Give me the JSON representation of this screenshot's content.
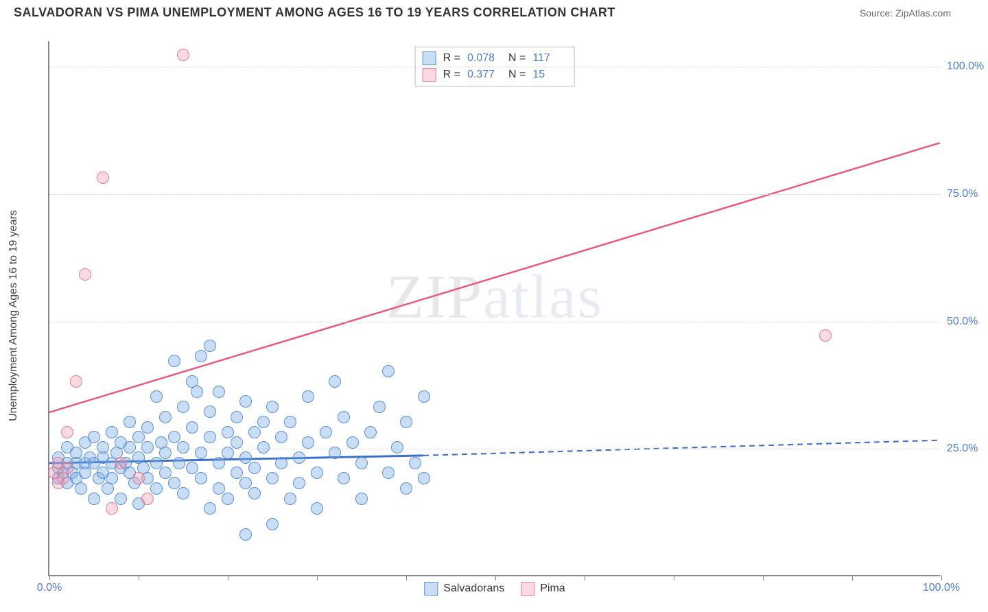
{
  "title": "SALVADORAN VS PIMA UNEMPLOYMENT AMONG AGES 16 TO 19 YEARS CORRELATION CHART",
  "source_label": "Source: ZipAtlas.com",
  "watermark": {
    "part1": "ZIP",
    "part2": "atlas"
  },
  "y_axis_label": "Unemployment Among Ages 16 to 19 years",
  "chart": {
    "type": "scatter",
    "xlim": [
      0,
      100
    ],
    "ylim": [
      0,
      105
    ],
    "background_color": "#ffffff",
    "grid_color": "#dddddd",
    "axis_color": "#888888",
    "tick_color": "#4a7bd0",
    "tick_fontsize": 16,
    "y_ticks": [
      25,
      50,
      75,
      100
    ],
    "y_tick_labels": [
      "25.0%",
      "50.0%",
      "75.0%",
      "100.0%"
    ],
    "x_ticks": [
      0,
      10,
      20,
      30,
      40,
      50,
      60,
      70,
      80,
      90,
      100
    ],
    "x_tick_labels_shown": {
      "0": "0.0%",
      "100": "100.0%"
    },
    "marker_size": 18,
    "series": [
      {
        "id": "salvadorans",
        "label": "Salvadorans",
        "color_fill": "rgba(120,170,230,0.4)",
        "color_border": "#5a8fd0",
        "R": "0.078",
        "N": "117",
        "trend": {
          "x1": 0,
          "y1": 22,
          "x2_solid": 42,
          "y2_solid": 23.5,
          "x2_dash": 100,
          "y2_dash": 26.5,
          "color": "#3b6fc9",
          "width": 3
        },
        "points": [
          [
            1,
            21
          ],
          [
            1,
            19
          ],
          [
            1,
            23
          ],
          [
            1.5,
            20
          ],
          [
            2,
            22
          ],
          [
            2,
            18
          ],
          [
            2,
            25
          ],
          [
            2.5,
            20
          ],
          [
            3,
            22
          ],
          [
            3,
            19
          ],
          [
            3,
            24
          ],
          [
            3.5,
            17
          ],
          [
            4,
            22
          ],
          [
            4,
            26
          ],
          [
            4,
            20
          ],
          [
            4.5,
            23
          ],
          [
            5,
            15
          ],
          [
            5,
            22
          ],
          [
            5,
            27
          ],
          [
            5.5,
            19
          ],
          [
            6,
            23
          ],
          [
            6,
            20
          ],
          [
            6,
            25
          ],
          [
            6.5,
            17
          ],
          [
            7,
            22
          ],
          [
            7,
            28
          ],
          [
            7,
            19
          ],
          [
            7.5,
            24
          ],
          [
            8,
            21
          ],
          [
            8,
            15
          ],
          [
            8,
            26
          ],
          [
            8.5,
            22
          ],
          [
            9,
            30
          ],
          [
            9,
            20
          ],
          [
            9,
            25
          ],
          [
            9.5,
            18
          ],
          [
            10,
            23
          ],
          [
            10,
            27
          ],
          [
            10,
            14
          ],
          [
            10.5,
            21
          ],
          [
            11,
            25
          ],
          [
            11,
            19
          ],
          [
            11,
            29
          ],
          [
            12,
            22
          ],
          [
            12,
            35
          ],
          [
            12,
            17
          ],
          [
            12.5,
            26
          ],
          [
            13,
            20
          ],
          [
            13,
            31
          ],
          [
            13,
            24
          ],
          [
            14,
            42
          ],
          [
            14,
            18
          ],
          [
            14,
            27
          ],
          [
            14.5,
            22
          ],
          [
            15,
            33
          ],
          [
            15,
            16
          ],
          [
            15,
            25
          ],
          [
            16,
            38
          ],
          [
            16,
            21
          ],
          [
            16,
            29
          ],
          [
            16.5,
            36
          ],
          [
            17,
            24
          ],
          [
            17,
            19
          ],
          [
            17,
            43
          ],
          [
            18,
            27
          ],
          [
            18,
            13
          ],
          [
            18,
            32
          ],
          [
            19,
            22
          ],
          [
            19,
            36
          ],
          [
            19,
            17
          ],
          [
            20,
            28
          ],
          [
            20,
            24
          ],
          [
            20,
            15
          ],
          [
            21,
            31
          ],
          [
            21,
            20
          ],
          [
            21,
            26
          ],
          [
            22,
            18
          ],
          [
            22,
            34
          ],
          [
            22,
            23
          ],
          [
            23,
            28
          ],
          [
            23,
            16
          ],
          [
            23,
            21
          ],
          [
            24,
            30
          ],
          [
            24,
            25
          ],
          [
            25,
            19
          ],
          [
            25,
            33
          ],
          [
            25,
            10
          ],
          [
            26,
            27
          ],
          [
            26,
            22
          ],
          [
            27,
            15
          ],
          [
            27,
            30
          ],
          [
            28,
            23
          ],
          [
            28,
            18
          ],
          [
            29,
            26
          ],
          [
            29,
            35
          ],
          [
            30,
            20
          ],
          [
            30,
            13
          ],
          [
            31,
            28
          ],
          [
            32,
            24
          ],
          [
            32,
            38
          ],
          [
            33,
            19
          ],
          [
            33,
            31
          ],
          [
            34,
            26
          ],
          [
            35,
            22
          ],
          [
            35,
            15
          ],
          [
            36,
            28
          ],
          [
            37,
            33
          ],
          [
            38,
            20
          ],
          [
            38,
            40
          ],
          [
            39,
            25
          ],
          [
            40,
            30
          ],
          [
            40,
            17
          ],
          [
            41,
            22
          ],
          [
            42,
            35
          ],
          [
            42,
            19
          ],
          [
            18,
            45
          ],
          [
            22,
            8
          ]
        ]
      },
      {
        "id": "pima",
        "label": "Pima",
        "color_fill": "rgba(240,150,170,0.35)",
        "color_border": "#e07a95",
        "R": "0.377",
        "N": "15",
        "trend": {
          "x1": 0,
          "y1": 32,
          "x2_solid": 100,
          "y2_solid": 85,
          "x2_dash": 100,
          "y2_dash": 85,
          "color": "#e85a7a",
          "width": 2.5
        },
        "points": [
          [
            0.5,
            20
          ],
          [
            1,
            18
          ],
          [
            1,
            22
          ],
          [
            1.5,
            19
          ],
          [
            2,
            21
          ],
          [
            2,
            28
          ],
          [
            3,
            38
          ],
          [
            4,
            59
          ],
          [
            6,
            78
          ],
          [
            7,
            13
          ],
          [
            8,
            22
          ],
          [
            10,
            19
          ],
          [
            11,
            15
          ],
          [
            15,
            102
          ],
          [
            87,
            47
          ]
        ]
      }
    ]
  },
  "stats_box": {
    "rows": [
      {
        "swatch": "blue",
        "R_label": "R =",
        "R": "0.078",
        "N_label": "N =",
        "N": "117"
      },
      {
        "swatch": "pink",
        "R_label": "R =",
        "R": "0.377",
        "N_label": "N =",
        "15": "15",
        "N_val": "15"
      }
    ]
  },
  "bottom_legend": [
    {
      "swatch": "blue",
      "label": "Salvadorans"
    },
    {
      "swatch": "pink",
      "label": "Pima"
    }
  ]
}
